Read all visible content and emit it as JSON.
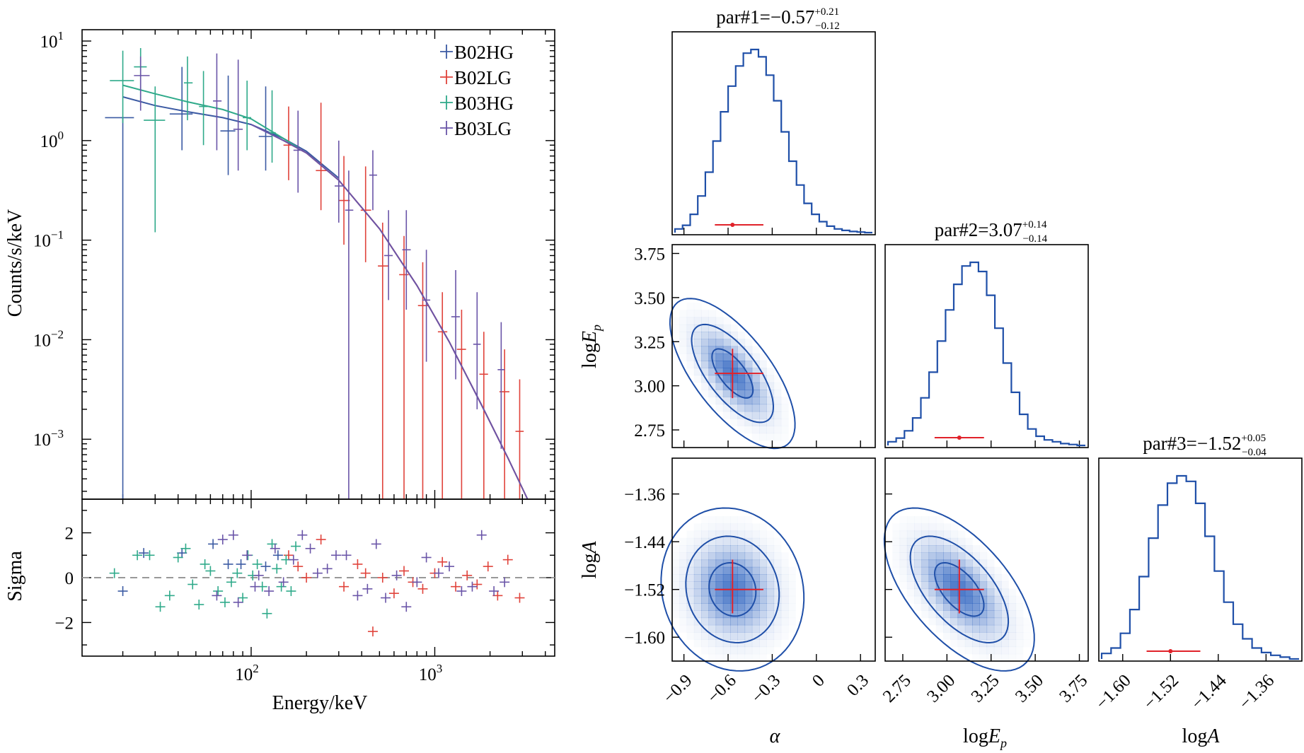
{
  "colors": {
    "B02HG": "#3b5aa3",
    "B02LG": "#e0433b",
    "B03HG": "#2faa8a",
    "B03LG": "#6a55a8",
    "corner_blue": "#1f4fa8",
    "corner_fill": "#2f64c0",
    "marker_red": "#e0222a",
    "zero_line": "#999999"
  },
  "chart_data": [
    {
      "type": "line",
      "panel": "spectrum",
      "ylabel": "Counts/s/keV",
      "xscale": "log",
      "yscale": "log",
      "xlim": [
        12,
        4500
      ],
      "ylim": [
        0.00025,
        13
      ],
      "x_ticks": [
        {
          "value": 100,
          "base": "10",
          "exp": "2"
        },
        {
          "value": 1000,
          "base": "10",
          "exp": "3"
        }
      ],
      "y_ticks": [
        {
          "value": 10,
          "base": "10",
          "exp": "1"
        },
        {
          "value": 1,
          "base": "10",
          "exp": "0"
        },
        {
          "value": 0.1,
          "base": "10",
          "exp": "−1"
        },
        {
          "value": 0.01,
          "base": "10",
          "exp": "−2"
        },
        {
          "value": 0.001,
          "base": "10",
          "exp": "−3"
        }
      ],
      "legend_position": "top-right",
      "series": [
        {
          "name": "B02HG",
          "color_key": "B02HG",
          "model_x": [
            20,
            30,
            45,
            70,
            100,
            150,
            200,
            300
          ],
          "model_y": [
            2.75,
            2.25,
            1.95,
            1.7,
            1.45,
            1.05,
            0.78,
            0.42
          ],
          "points": [
            {
              "x": 20,
              "y": 1.7,
              "xlo": 16,
              "xhi": 23,
              "ylo": 0.00025,
              "yhi": 1.7
            },
            {
              "x": 42,
              "y": 1.85,
              "xlo": 36,
              "xhi": 48,
              "ylo": 0.8,
              "yhi": 5.5
            },
            {
              "x": 75,
              "y": 1.25,
              "xlo": 68,
              "xhi": 82,
              "ylo": 0.45,
              "yhi": 4.5
            },
            {
              "x": 120,
              "y": 1.1,
              "xlo": 110,
              "xhi": 130,
              "ylo": 0.5,
              "yhi": 3.5
            }
          ]
        },
        {
          "name": "B02LG",
          "color_key": "B02LG",
          "model_x": [
            150,
            200,
            300,
            500,
            800,
            1200,
            1800,
            2500,
            3200
          ],
          "model_y": [
            1.0,
            0.75,
            0.4,
            0.13,
            0.035,
            0.0095,
            0.0022,
            0.00065,
            0.00025
          ],
          "points": [
            {
              "x": 160,
              "y": 0.9,
              "xlo": 150,
              "xhi": 172,
              "ylo": 0.4,
              "yhi": 2.2
            },
            {
              "x": 240,
              "y": 0.5,
              "xlo": 225,
              "xhi": 258,
              "ylo": 0.2,
              "yhi": 2.4
            },
            {
              "x": 320,
              "y": 0.25,
              "xlo": 300,
              "xhi": 345,
              "ylo": 0.09,
              "yhi": 0.7
            },
            {
              "x": 420,
              "y": 0.2,
              "xlo": 395,
              "xhi": 450,
              "ylo": 0.06,
              "yhi": 0.55
            },
            {
              "x": 520,
              "y": 0.055,
              "xlo": 490,
              "xhi": 560,
              "ylo": 0.00025,
              "yhi": 0.15
            },
            {
              "x": 680,
              "y": 0.045,
              "xlo": 640,
              "xhi": 720,
              "ylo": 0.00025,
              "yhi": 0.11
            },
            {
              "x": 860,
              "y": 0.022,
              "xlo": 810,
              "xhi": 920,
              "ylo": 0.00025,
              "yhi": 0.06
            },
            {
              "x": 1100,
              "y": 0.012,
              "xlo": 1040,
              "xhi": 1170,
              "ylo": 0.00025,
              "yhi": 0.03
            },
            {
              "x": 1400,
              "y": 0.008,
              "xlo": 1320,
              "xhi": 1480,
              "ylo": 0.00025,
              "yhi": 0.02
            },
            {
              "x": 1850,
              "y": 0.0045,
              "xlo": 1750,
              "xhi": 1950,
              "ylo": 0.00025,
              "yhi": 0.012
            },
            {
              "x": 2400,
              "y": 0.003,
              "xlo": 2250,
              "xhi": 2550,
              "ylo": 0.00025,
              "yhi": 0.008
            },
            {
              "x": 2900,
              "y": 0.0012,
              "xlo": 2750,
              "xhi": 3050,
              "ylo": 0.00025,
              "yhi": 0.004
            }
          ]
        },
        {
          "name": "B03HG",
          "color_key": "B03HG",
          "model_x": [
            20,
            30,
            45,
            70,
            100,
            150,
            180
          ],
          "model_y": [
            3.6,
            2.95,
            2.45,
            2.05,
            1.65,
            1.05,
            0.85
          ],
          "points": [
            {
              "x": 20,
              "y": 4.0,
              "xlo": 17,
              "xhi": 23,
              "ylo": 1.5,
              "yhi": 8
            },
            {
              "x": 25,
              "y": 5.5,
              "xlo": 23,
              "xhi": 27,
              "ylo": 2.5,
              "yhi": 8.5
            },
            {
              "x": 30,
              "y": 1.6,
              "xlo": 26,
              "xhi": 34,
              "ylo": 0.12,
              "yhi": 3.5
            },
            {
              "x": 45,
              "y": 3.8,
              "xlo": 43,
              "xhi": 48,
              "ylo": 1.6,
              "yhi": 7
            },
            {
              "x": 55,
              "y": 2.2,
              "xlo": 52,
              "xhi": 58,
              "ylo": 0.9,
              "yhi": 5
            },
            {
              "x": 95,
              "y": 1.7,
              "xlo": 90,
              "xhi": 100,
              "ylo": 0.8,
              "yhi": 4
            },
            {
              "x": 130,
              "y": 1.2,
              "xlo": 124,
              "xhi": 136,
              "ylo": 0.6,
              "yhi": 3.2
            }
          ]
        },
        {
          "name": "B03LG",
          "color_key": "B03LG",
          "model_x": [
            100,
            150,
            200,
            300,
            500,
            800,
            1200,
            1800,
            2500,
            3200
          ],
          "model_y": [
            1.45,
            1.0,
            0.75,
            0.4,
            0.13,
            0.035,
            0.0095,
            0.0022,
            0.00065,
            0.00025
          ],
          "points": [
            {
              "x": 25,
              "y": 4.5,
              "xlo": 23,
              "xhi": 28,
              "ylo": 2.0,
              "yhi": 7
            },
            {
              "x": 65,
              "y": 2.5,
              "xlo": 62,
              "xhi": 69,
              "ylo": 0.8,
              "yhi": 7.5
            },
            {
              "x": 85,
              "y": 1.3,
              "xlo": 80,
              "xhi": 90,
              "ylo": 0.5,
              "yhi": 6.5
            },
            {
              "x": 180,
              "y": 0.8,
              "xlo": 170,
              "xhi": 192,
              "ylo": 0.3,
              "yhi": 2.0
            },
            {
              "x": 300,
              "y": 0.35,
              "xlo": 285,
              "xhi": 318,
              "ylo": 0.15,
              "yhi": 1.0
            },
            {
              "x": 340,
              "y": 0.2,
              "xlo": 325,
              "xhi": 360,
              "ylo": 0.00025,
              "yhi": 0.5
            },
            {
              "x": 460,
              "y": 0.45,
              "xlo": 440,
              "xhi": 485,
              "ylo": 0.2,
              "yhi": 0.8
            },
            {
              "x": 560,
              "y": 0.07,
              "xlo": 530,
              "xhi": 590,
              "ylo": 0.025,
              "yhi": 0.2
            },
            {
              "x": 700,
              "y": 0.08,
              "xlo": 665,
              "xhi": 740,
              "ylo": 0.02,
              "yhi": 0.2
            },
            {
              "x": 900,
              "y": 0.025,
              "xlo": 855,
              "xhi": 945,
              "ylo": 0.006,
              "yhi": 0.08
            },
            {
              "x": 1300,
              "y": 0.017,
              "xlo": 1230,
              "xhi": 1370,
              "ylo": 0.004,
              "yhi": 0.05
            },
            {
              "x": 1700,
              "y": 0.009,
              "xlo": 1620,
              "xhi": 1780,
              "ylo": 0.002,
              "yhi": 0.03
            },
            {
              "x": 2300,
              "y": 0.005,
              "xlo": 2200,
              "xhi": 2400,
              "ylo": 0.0008,
              "yhi": 0.015
            }
          ]
        }
      ]
    },
    {
      "type": "scatter",
      "panel": "residuals",
      "xlabel": "Energy/keV",
      "ylabel": "Sigma",
      "xscale": "log",
      "xlim": [
        12,
        4500
      ],
      "ylim": [
        -3.5,
        3.5
      ],
      "y_ticks": [
        2,
        0,
        -2
      ],
      "zero_line": 0,
      "series": [
        {
          "name": "B02HG",
          "color_key": "B02HG",
          "x": [
            20,
            26,
            42,
            62,
            75,
            88,
            120,
            140
          ],
          "y": [
            -0.6,
            1.1,
            1.1,
            1.5,
            0.6,
            0.6,
            0.5,
            1.0
          ]
        },
        {
          "name": "B02LG",
          "color_key": "B02LG",
          "x": [
            160,
            180,
            200,
            240,
            320,
            380,
            420,
            460,
            520,
            600,
            680,
            760,
            860,
            1000,
            1100,
            1300,
            1500,
            1700,
            1950,
            2200,
            2500,
            2900
          ],
          "y": [
            1.0,
            0.5,
            0.0,
            1.7,
            -0.4,
            0.6,
            0.2,
            -2.4,
            0.0,
            -0.7,
            0.3,
            -0.2,
            -0.5,
            0.2,
            0.7,
            -0.4,
            0.1,
            -0.3,
            0.5,
            -0.8,
            0.8,
            -0.9
          ]
        },
        {
          "name": "B03HG",
          "color_key": "B03HG",
          "x": [
            18,
            24,
            28,
            32,
            36,
            40,
            44,
            48,
            52,
            56,
            60,
            66,
            72,
            78,
            84,
            90,
            96,
            102,
            108,
            115,
            122,
            130,
            138,
            146,
            155,
            165,
            175
          ],
          "y": [
            0.2,
            1.0,
            1.0,
            -1.3,
            -0.8,
            0.9,
            1.3,
            -0.3,
            -1.2,
            0.6,
            0.3,
            -0.6,
            -1.1,
            -0.2,
            0.2,
            -0.9,
            1.0,
            0.1,
            0.6,
            -0.4,
            -1.6,
            1.5,
            0.4,
            -0.4,
            0.8,
            -0.6,
            1.4
          ]
        },
        {
          "name": "B03LG",
          "color_key": "B03LG",
          "x": [
            65,
            70,
            80,
            85,
            95,
            105,
            110,
            125,
            135,
            150,
            170,
            190,
            210,
            230,
            260,
            290,
            330,
            380,
            430,
            480,
            540,
            620,
            700,
            800,
            900,
            1050,
            1200,
            1400,
            1600,
            1800,
            2100,
            2400
          ],
          "y": [
            -0.8,
            1.7,
            1.9,
            -1.1,
            1.0,
            -0.4,
            0.1,
            -0.6,
            1.3,
            -0.2,
            0.8,
            1.9,
            1.3,
            0.2,
            0.4,
            1.0,
            1.0,
            -0.8,
            -0.5,
            1.5,
            -0.9,
            0.1,
            -1.3,
            -0.2,
            0.9,
            0.2,
            0.5,
            -0.6,
            -0.4,
            1.9,
            -0.6,
            -0.2
          ]
        }
      ]
    },
    {
      "type": "corner",
      "panel": "posterior",
      "params": [
        {
          "key": "alpha",
          "axis_label": "α",
          "value": -0.57,
          "err_plus": 0.21,
          "err_minus": 0.12,
          "title_prefix": "par#1=",
          "title_value": "−0.57",
          "title_plus": "+0.21",
          "title_minus": "−0.12",
          "range": [
            -0.98,
            0.4
          ],
          "ticks": [
            {
              "value": -0.9,
              "label": "−0.9"
            },
            {
              "value": -0.6,
              "label": "−0.6"
            },
            {
              "value": -0.3,
              "label": "−0.3"
            },
            {
              "value": 0,
              "label": "0"
            },
            {
              "value": 0.3,
              "label": "0.3"
            }
          ],
          "hist": [
            0.02,
            0.04,
            0.1,
            0.2,
            0.33,
            0.5,
            0.66,
            0.8,
            0.91,
            0.98,
            1.0,
            0.96,
            0.86,
            0.72,
            0.55,
            0.39,
            0.26,
            0.16,
            0.1,
            0.06,
            0.035,
            0.02,
            0.012,
            0.006,
            0.003,
            0.0
          ]
        },
        {
          "key": "logEp",
          "axis_label_main": "log",
          "axis_label_var": "E",
          "axis_label_sub": "p",
          "value": 3.07,
          "err_plus": 0.14,
          "err_minus": 0.14,
          "title_prefix": "par#2=",
          "title_value": "3.07",
          "title_plus": "+0.14",
          "title_minus": "−0.14",
          "range": [
            2.65,
            3.8
          ],
          "ticks": [
            {
              "value": 2.75,
              "label": "2.75"
            },
            {
              "value": 3.0,
              "label": "3.00"
            },
            {
              "value": 3.25,
              "label": "3.25"
            },
            {
              "value": 3.5,
              "label": "3.50"
            },
            {
              "value": 3.75,
              "label": "3.75"
            }
          ],
          "hist": [
            0.02,
            0.04,
            0.08,
            0.15,
            0.26,
            0.4,
            0.57,
            0.74,
            0.88,
            0.98,
            1.0,
            0.95,
            0.82,
            0.64,
            0.45,
            0.29,
            0.17,
            0.09,
            0.05,
            0.03,
            0.02,
            0.01,
            0.005,
            0.0
          ]
        },
        {
          "key": "logA",
          "axis_label_main": "log",
          "axis_label_var": "A",
          "value": -1.52,
          "err_plus": 0.05,
          "err_minus": 0.04,
          "title_prefix": "par#3=",
          "title_value": "−1.52",
          "title_plus": "+0.05",
          "title_minus": "−0.04",
          "range": [
            -1.64,
            -1.3
          ],
          "ticks": [
            {
              "value": -1.6,
              "label": "−1.60"
            },
            {
              "value": -1.52,
              "label": "−1.52"
            },
            {
              "value": -1.44,
              "label": "−1.44"
            },
            {
              "value": -1.36,
              "label": "−1.36"
            }
          ],
          "hist": [
            0.03,
            0.06,
            0.14,
            0.27,
            0.45,
            0.66,
            0.84,
            0.96,
            1.0,
            0.97,
            0.85,
            0.67,
            0.48,
            0.31,
            0.19,
            0.11,
            0.06,
            0.035,
            0.02,
            0.01,
            0.0
          ]
        }
      ],
      "contour_levels": [
        0.39,
        0.86,
        0.99
      ],
      "pairs": [
        {
          "x": "alpha",
          "y": "logEp",
          "sx": 0.14,
          "sy": 0.14,
          "rho": -0.68
        },
        {
          "x": "alpha",
          "y": "logA",
          "sx": 0.16,
          "sy": 0.045,
          "rho": -0.1
        },
        {
          "x": "logEp",
          "y": "logA",
          "sx": 0.14,
          "sy": 0.045,
          "rho": -0.6
        }
      ]
    }
  ]
}
